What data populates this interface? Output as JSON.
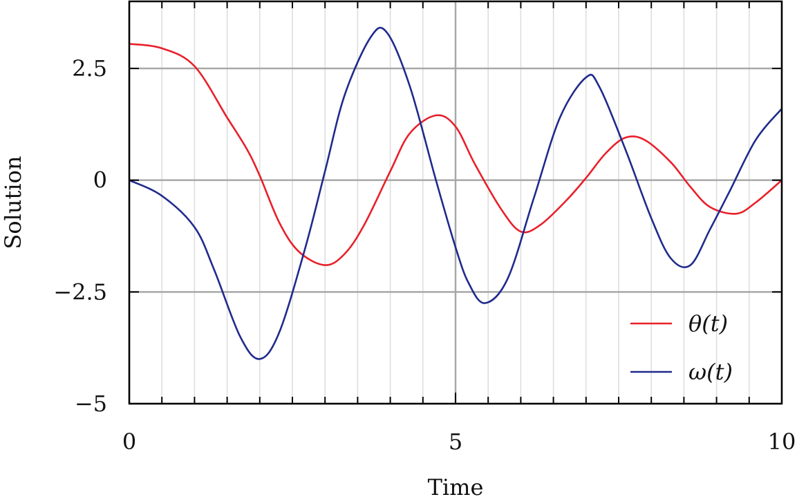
{
  "chart_data": {
    "type": "line",
    "title": "",
    "xlabel": "Time",
    "ylabel": "Solution",
    "xlim": [
      0,
      10
    ],
    "ylim": [
      -5,
      4
    ],
    "xticks": [
      0,
      5,
      10
    ],
    "xtick_labels": [
      "0",
      "5",
      "10"
    ],
    "yticks": [
      -5,
      -2.5,
      0,
      2.5
    ],
    "ytick_labels": [
      "−5",
      "−2.5",
      "0",
      "2.5"
    ],
    "grid": true,
    "legend_position": "bottom-right",
    "series": [
      {
        "name": "θ(t)",
        "color": "#e8202a",
        "x": [
          0,
          0.5,
          1.0,
          1.5,
          1.8,
          2.0,
          2.3,
          2.6,
          3.0,
          3.3,
          3.6,
          4.0,
          4.3,
          4.7,
          5.0,
          5.3,
          5.7,
          6.0,
          6.3,
          6.7,
          7.0,
          7.3,
          7.6,
          7.9,
          8.3,
          8.6,
          8.9,
          9.3,
          9.6,
          10.0
        ],
        "values": [
          3.05,
          2.95,
          2.55,
          1.4,
          0.7,
          0.1,
          -0.95,
          -1.6,
          -1.9,
          -1.65,
          -1.0,
          0.2,
          1.05,
          1.45,
          1.2,
          0.35,
          -0.65,
          -1.15,
          -1.0,
          -0.45,
          0.05,
          0.6,
          0.95,
          0.9,
          0.4,
          -0.15,
          -0.6,
          -0.75,
          -0.5,
          0.0
        ]
      },
      {
        "name": "ω(t)",
        "color": "#1f2a8c",
        "x": [
          0,
          0.5,
          1.0,
          1.3,
          1.7,
          2.0,
          2.3,
          2.7,
          3.0,
          3.3,
          3.7,
          3.95,
          4.3,
          4.7,
          5.0,
          5.2,
          5.45,
          5.8,
          6.2,
          6.6,
          7.0,
          7.2,
          7.6,
          8.0,
          8.3,
          8.6,
          8.9,
          9.2,
          9.6,
          10.0
        ],
        "values": [
          0.0,
          -0.35,
          -1.05,
          -2.0,
          -3.5,
          -4.0,
          -3.4,
          -1.5,
          0.2,
          1.9,
          3.2,
          3.3,
          2.1,
          0.0,
          -1.5,
          -2.3,
          -2.75,
          -2.2,
          -0.4,
          1.4,
          2.3,
          2.1,
          0.7,
          -0.85,
          -1.75,
          -1.9,
          -1.1,
          -0.25,
          0.9,
          1.6
        ]
      }
    ]
  }
}
